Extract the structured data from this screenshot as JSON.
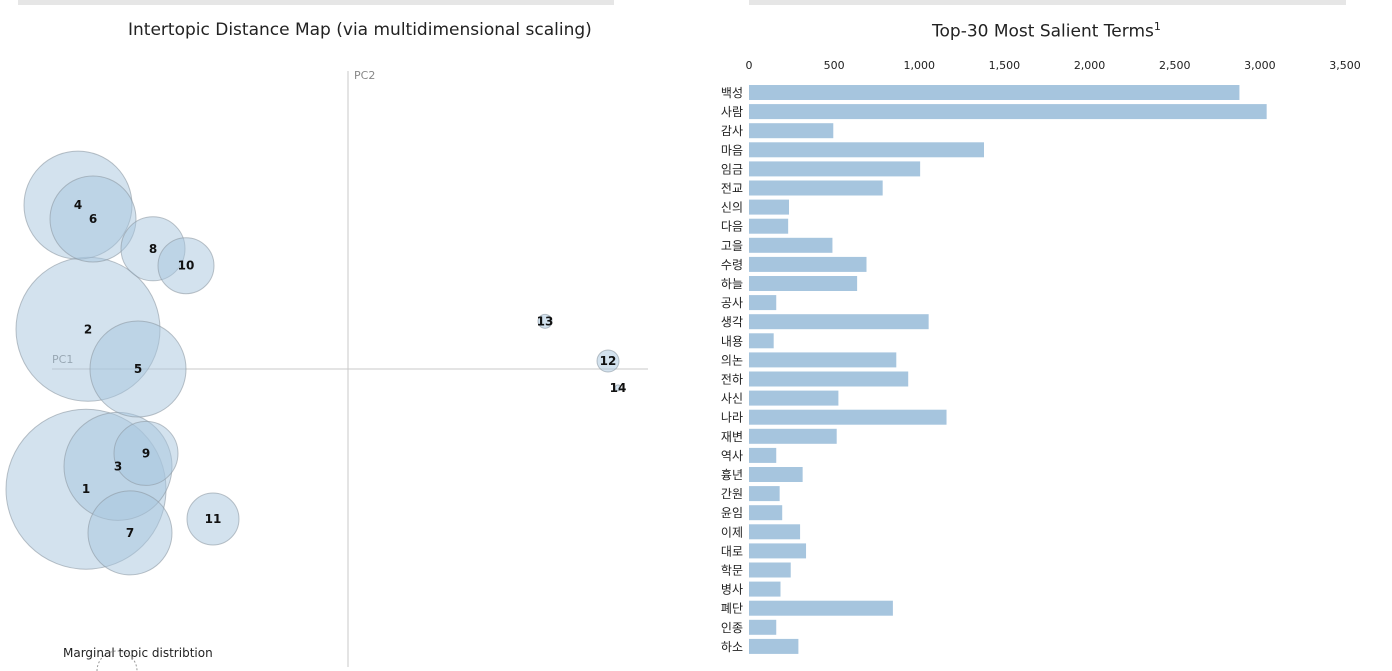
{
  "left_panel": {
    "title": "Intertopic Distance Map (via multidimensional scaling)",
    "pc1_label": "PC1",
    "pc2_label": "PC2",
    "marginal_label": "Marginal topic distribtion"
  },
  "right_panel": {
    "title": "Top-30 Most Salient Terms",
    "title_footnote": "1"
  },
  "colors": {
    "bubble_fill": "#a8c5dd",
    "bubble_stroke": "#8e9aa3",
    "bar_fill": "#a6c5de",
    "axis_line": "#c8c8c8",
    "topbar": "#e6e6e6"
  },
  "chart_data": [
    {
      "type": "scatter",
      "title": "Intertopic Distance Map (via multidimensional scaling)",
      "xlabel": "PC1",
      "ylabel": "PC2",
      "xlim": [
        -0.33,
        0.3
      ],
      "ylim": [
        -0.3,
        0.3
      ],
      "topics": [
        {
          "topic": "1",
          "x": -0.262,
          "y": -0.121,
          "r": 0.08
        },
        {
          "topic": "2",
          "x": -0.26,
          "y": 0.04,
          "r": 0.072
        },
        {
          "topic": "3",
          "x": -0.23,
          "y": -0.098,
          "r": 0.054
        },
        {
          "topic": "4",
          "x": -0.27,
          "y": 0.165,
          "r": 0.054
        },
        {
          "topic": "5",
          "x": -0.21,
          "y": 0.0,
          "r": 0.048
        },
        {
          "topic": "6",
          "x": -0.255,
          "y": 0.151,
          "r": 0.043
        },
        {
          "topic": "7",
          "x": -0.218,
          "y": -0.165,
          "r": 0.042
        },
        {
          "topic": "8",
          "x": -0.195,
          "y": 0.121,
          "r": 0.032
        },
        {
          "topic": "9",
          "x": -0.202,
          "y": -0.085,
          "r": 0.032
        },
        {
          "topic": "10",
          "x": -0.162,
          "y": 0.104,
          "r": 0.028
        },
        {
          "topic": "11",
          "x": -0.135,
          "y": -0.151,
          "r": 0.026
        },
        {
          "topic": "12",
          "x": 0.26,
          "y": 0.008,
          "r": 0.011
        },
        {
          "topic": "13",
          "x": 0.197,
          "y": 0.048,
          "r": 0.007
        },
        {
          "topic": "14",
          "x": 0.27,
          "y": -0.019,
          "r": 0.003
        }
      ]
    },
    {
      "type": "bar",
      "orientation": "horizontal",
      "title": "Top-30 Most Salient Terms",
      "xlim": [
        0,
        3500
      ],
      "xticks": [
        "0",
        "500",
        "1,000",
        "1,500",
        "2,000",
        "2,500",
        "3,000",
        "3,500"
      ],
      "categories": [
        "백성",
        "사람",
        "감사",
        "마음",
        "임금",
        "전교",
        "신의",
        "다음",
        "고을",
        "수령",
        "하늘",
        "공사",
        "생각",
        "내용",
        "의논",
        "전하",
        "사신",
        "나라",
        "재변",
        "역사",
        "흉년",
        "간원",
        "윤임",
        "이제",
        "대로",
        "학문",
        "병사",
        "폐단",
        "인종",
        "하소"
      ],
      "values": [
        2880,
        3040,
        495,
        1380,
        1005,
        785,
        235,
        230,
        490,
        690,
        635,
        160,
        1055,
        145,
        865,
        935,
        525,
        1160,
        515,
        160,
        315,
        180,
        195,
        300,
        335,
        245,
        185,
        845,
        160,
        290
      ]
    }
  ]
}
